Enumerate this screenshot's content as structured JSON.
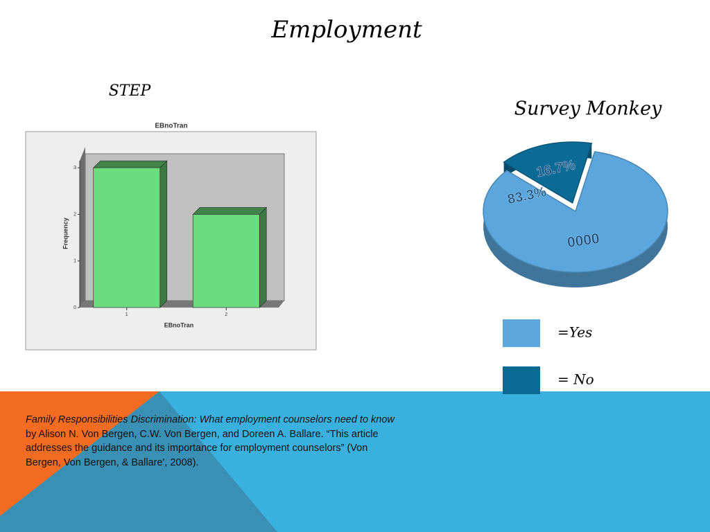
{
  "slide": {
    "title": "Employment",
    "step_label": "STEP"
  },
  "chart_data": [
    {
      "type": "bar",
      "title": "EBnoTran",
      "x_label": "EBnoTran",
      "y_label": "Frequency",
      "categories": [
        "1",
        "2"
      ],
      "values": [
        3,
        2
      ],
      "color": "#6cdc7c",
      "ylim": [
        0,
        3.3
      ],
      "yticks": [
        0,
        1,
        2,
        3
      ]
    },
    {
      "type": "pie",
      "title": "Survey Monkey",
      "categories": [
        "=Yes",
        "= No"
      ],
      "values": [
        83.3,
        16.7
      ],
      "value_labels": [
        "83.3%",
        "16.7%"
      ],
      "colors": [
        "#5ba7dd",
        "#0c6b95"
      ],
      "annotations": [
        "0000"
      ]
    }
  ],
  "citation": {
    "title": "Family Responsibilities Discrimination: What employment counselors need to know",
    "text": " by Alison N. Von Bergen, C.W. Von Bergen, and Doreen A. Ballare. “This article addresses the guidance and its importance for employment counselors” (Von Bergen, Von Bergen, & Ballare', 2008)."
  }
}
